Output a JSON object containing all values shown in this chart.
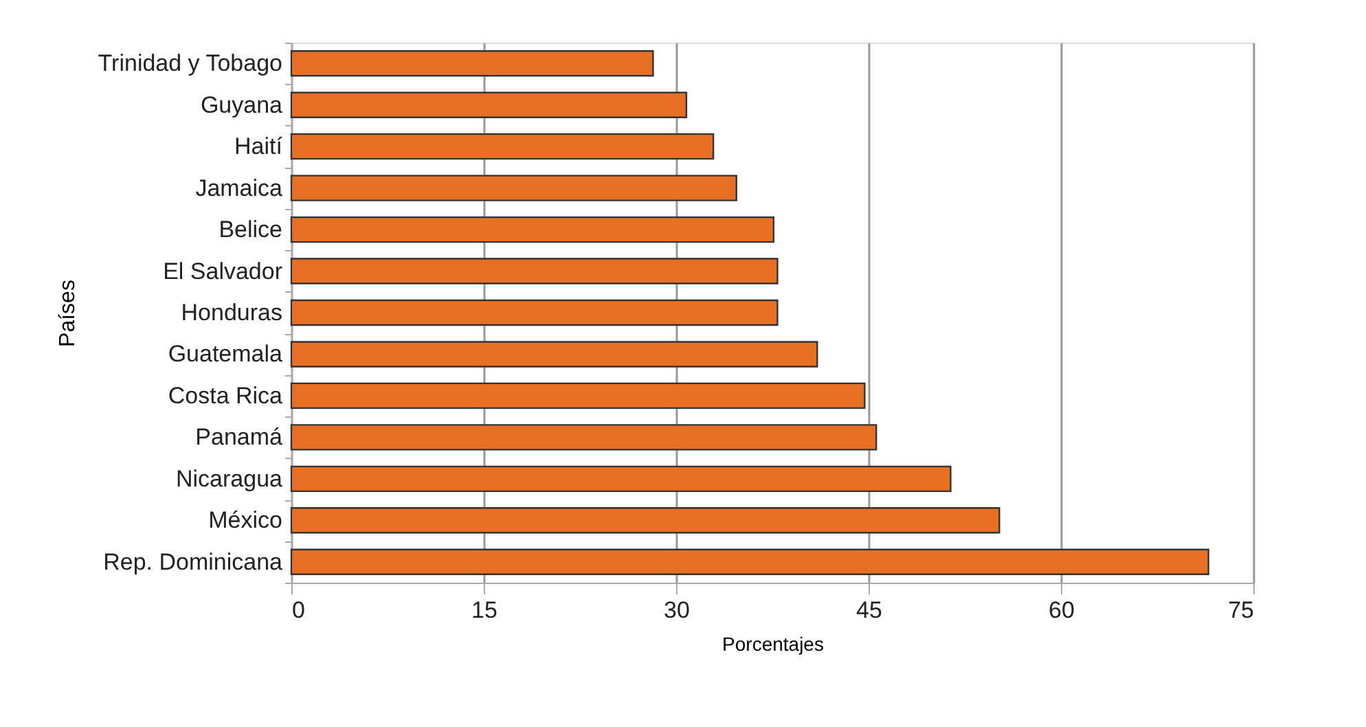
{
  "chart_data": {
    "type": "bar",
    "orientation": "horizontal",
    "xlabel": "Porcentajes",
    "ylabel": "Países",
    "categories": [
      "Trinidad y Tobago",
      "Guyana",
      "Haití",
      "Jamaica",
      "Belice",
      "El Salvador",
      "Honduras",
      "Guatemala",
      "Costa Rica",
      "Panamá",
      "Nicaragua",
      "México",
      "Rep. Dominicana"
    ],
    "values": [
      28.2,
      30.8,
      32.9,
      34.7,
      37.6,
      37.9,
      37.9,
      41.0,
      44.7,
      45.6,
      51.4,
      55.2,
      71.5
    ],
    "color": "#e87025",
    "xlim": [
      0,
      75
    ],
    "xticks": [
      0,
      15,
      30,
      45,
      60,
      75
    ],
    "grid": "x"
  }
}
